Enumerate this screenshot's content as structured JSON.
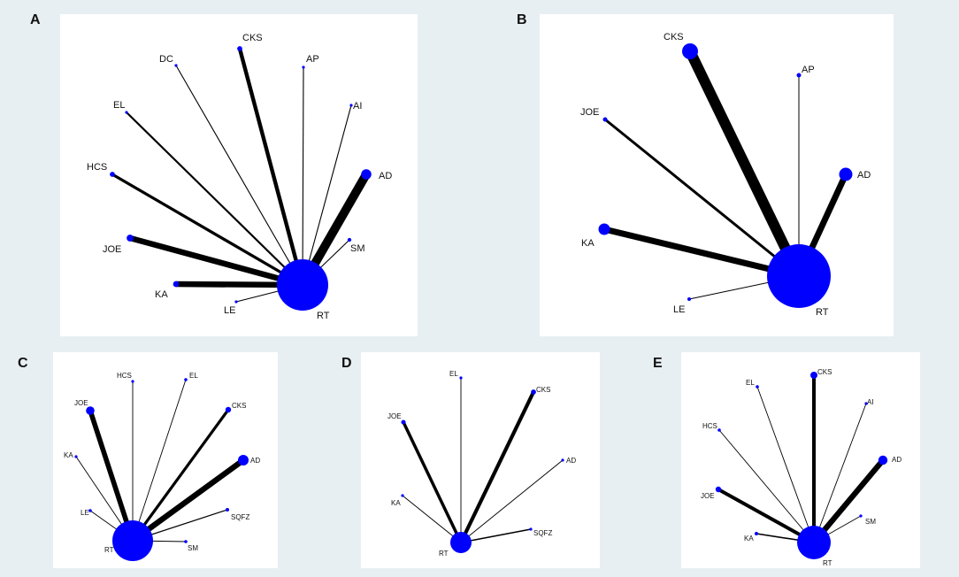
{
  "colors": {
    "background": "#e8eff2",
    "panel": "#ffffff",
    "node": "#0000ff",
    "edge": "#000000"
  },
  "panels": [
    {
      "letter": "A",
      "hub": {
        "label": "RT",
        "size": 5
      },
      "nodes": [
        {
          "label": "CKS",
          "size": 1.2,
          "edge": 4
        },
        {
          "label": "DC",
          "size": 0,
          "edge": 1
        },
        {
          "label": "AP",
          "size": 0,
          "edge": 1
        },
        {
          "label": "AI",
          "size": 0,
          "edge": 1
        },
        {
          "label": "EL",
          "size": 0,
          "edge": 2
        },
        {
          "label": "AD",
          "size": 2.4,
          "edge": 9
        },
        {
          "label": "HCS",
          "size": 1.2,
          "edge": 3
        },
        {
          "label": "SM",
          "size": 0.9,
          "edge": 1
        },
        {
          "label": "JOE",
          "size": 1.6,
          "edge": 6
        },
        {
          "label": "KA",
          "size": 1.4,
          "edge": 6
        },
        {
          "label": "LE",
          "size": 0,
          "edge": 1
        }
      ]
    },
    {
      "letter": "B",
      "hub": {
        "label": "RT",
        "size": 5
      },
      "nodes": [
        {
          "label": "CKS",
          "size": 3.6,
          "edge": 12
        },
        {
          "label": "AP",
          "size": 1,
          "edge": 1
        },
        {
          "label": "JOE",
          "size": 1,
          "edge": 3
        },
        {
          "label": "AD",
          "size": 3,
          "edge": 7
        },
        {
          "label": "KA",
          "size": 2.6,
          "edge": 7
        },
        {
          "label": "LE",
          "size": 0.8,
          "edge": 1
        }
      ]
    },
    {
      "letter": "C",
      "hub": {
        "label": "RT",
        "size": 5
      },
      "nodes": [
        {
          "label": "HCS",
          "size": 0,
          "edge": 1
        },
        {
          "label": "EL",
          "size": 0.9,
          "edge": 1
        },
        {
          "label": "JOE",
          "size": 2.4,
          "edge": 7
        },
        {
          "label": "CKS",
          "size": 1.6,
          "edge": 4
        },
        {
          "label": "KA",
          "size": 0,
          "edge": 1
        },
        {
          "label": "AD",
          "size": 3,
          "edge": 8
        },
        {
          "label": "LE",
          "size": 0.9,
          "edge": 1
        },
        {
          "label": "SQFZ",
          "size": 1,
          "edge": 1.5
        },
        {
          "label": "SM",
          "size": 0.9,
          "edge": 1
        }
      ]
    },
    {
      "letter": "D",
      "hub": {
        "label": "RT",
        "size": 5
      },
      "nodes": [
        {
          "label": "EL",
          "size": 0.9,
          "edge": 1
        },
        {
          "label": "CKS",
          "size": 1.8,
          "edge": 6
        },
        {
          "label": "JOE",
          "size": 1.6,
          "edge": 5
        },
        {
          "label": "AD",
          "size": 0.9,
          "edge": 1
        },
        {
          "label": "KA",
          "size": 0.9,
          "edge": 1
        },
        {
          "label": "SQFZ",
          "size": 0.9,
          "edge": 2
        }
      ]
    },
    {
      "letter": "E",
      "hub": {
        "label": "RT",
        "size": 5
      },
      "nodes": [
        {
          "label": "CKS",
          "size": 2,
          "edge": 5
        },
        {
          "label": "EL",
          "size": 0.9,
          "edge": 1
        },
        {
          "label": "AI",
          "size": 0,
          "edge": 1
        },
        {
          "label": "HCS",
          "size": 0.9,
          "edge": 1
        },
        {
          "label": "AD",
          "size": 2.6,
          "edge": 8
        },
        {
          "label": "SM",
          "size": 0,
          "edge": 1
        },
        {
          "label": "JOE",
          "size": 1.6,
          "edge": 5
        },
        {
          "label": "KA",
          "size": 1,
          "edge": 2
        }
      ]
    }
  ]
}
